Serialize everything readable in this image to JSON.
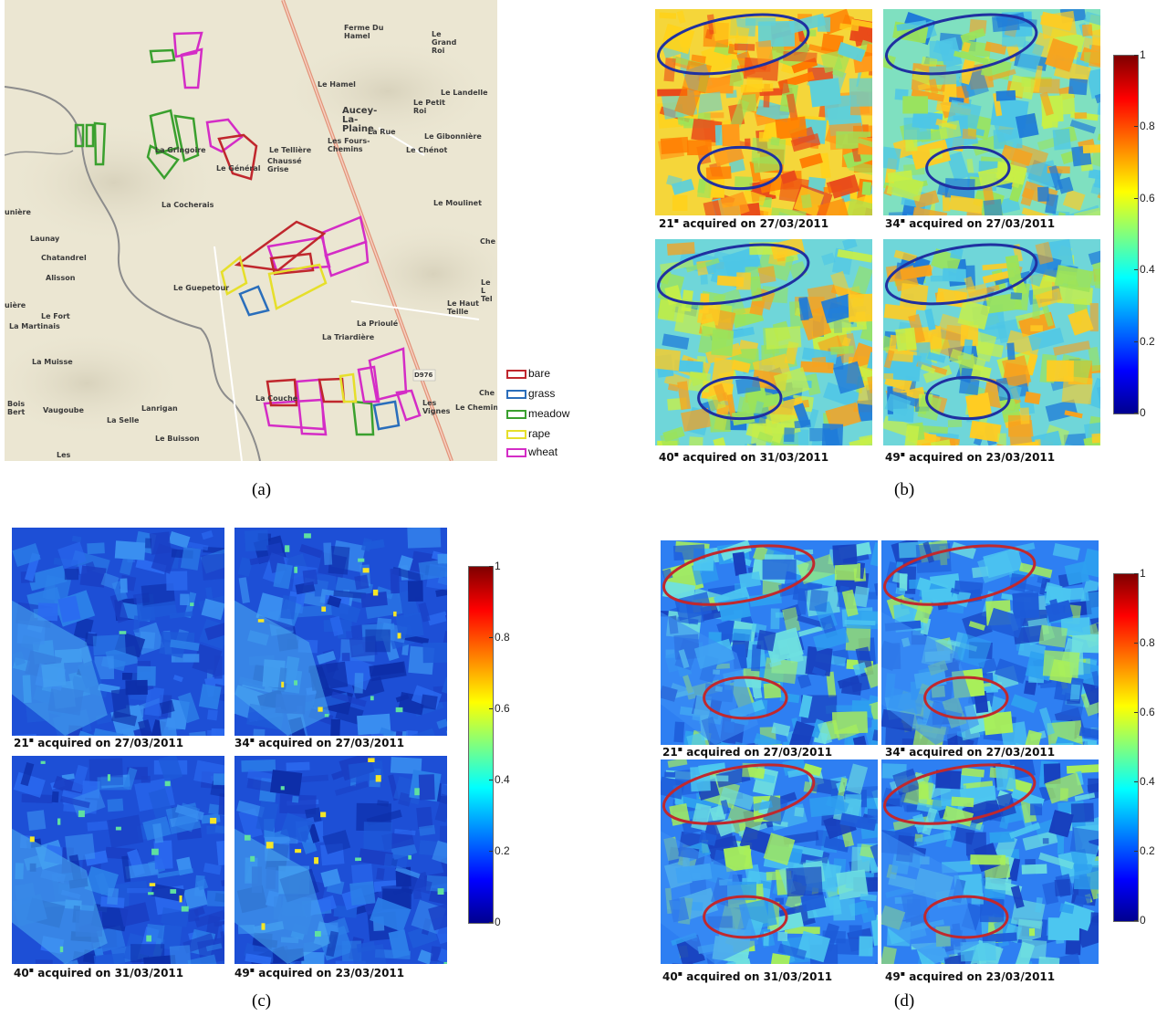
{
  "panels": {
    "a": "(a)",
    "b": "(b)",
    "c": "(c)",
    "d": "(d)"
  },
  "map": {
    "places": [
      "Ferme Du Hamel",
      "Le Grand Roi",
      "Le Hamel",
      "Le Landelle",
      "Aucey-La-Plaine",
      "Le Petit Roi",
      "La Rue",
      "Le Gibonnière",
      "Les Fours-Chemins",
      "Le Chénot",
      "Le Tellière",
      "Chaussé Grise",
      "La Gringoire",
      "Le Général",
      "La Cocherais",
      "Le Moulinet",
      "Launay",
      "Chatandrel",
      "Alisson",
      "Le Guepetour",
      "Le Fort",
      "La Martinais",
      "Le Haut Teille",
      "La Prioulé",
      "La Triardière",
      "La Muisse",
      "Bois Bert",
      "Vaugoube",
      "Lanrigan",
      "La Selle",
      "Le Buisson",
      "La Couche",
      "Les Vignes",
      "Le Chemin",
      "Les",
      "unière",
      "uière",
      "Che",
      "Le L Tel",
      "Che"
    ],
    "road_label": "D976",
    "legend": [
      {
        "label": "bare",
        "color": "#c0272d"
      },
      {
        "label": "grass",
        "color": "#2a6ebb"
      },
      {
        "label": "meadow",
        "color": "#3aa02e"
      },
      {
        "label": "rape",
        "color": "#e6df2a"
      },
      {
        "label": "wheat",
        "color": "#d42cc6"
      }
    ]
  },
  "image_sets": {
    "b": {
      "captions": [
        {
          "angle": "21",
          "text": "acquired on",
          "date": "27/03/2011"
        },
        {
          "angle": "34",
          "text": "acquired on",
          "date": "27/03/2011"
        },
        {
          "angle": "40",
          "text": "acquired on",
          "date": "31/03/2011"
        },
        {
          "angle": "49",
          "text": "acquired on",
          "date": "23/03/2011"
        }
      ],
      "ellipse_color": "#2030a0"
    },
    "c": {
      "captions": [
        {
          "angle": "21",
          "text": "acquired on",
          "date": "27/03/2011"
        },
        {
          "angle": "34",
          "text": "acquired on",
          "date": "27/03/2011"
        },
        {
          "angle": "40",
          "text": "acquired on",
          "date": "31/03/2011"
        },
        {
          "angle": "49",
          "text": "acquired on",
          "date": "23/03/2011"
        }
      ]
    },
    "d": {
      "captions": [
        {
          "angle": "21",
          "text": "acquired on",
          "date": "27/03/2011"
        },
        {
          "angle": "34",
          "text": "acquired on",
          "date": "27/03/2011"
        },
        {
          "angle": "40",
          "text": "acquired on",
          "date": "31/03/2011"
        },
        {
          "angle": "49",
          "text": "acquired on",
          "date": "23/03/2011"
        }
      ],
      "ellipse_color": "#c0282d"
    }
  },
  "colorbar": {
    "ticks": [
      "1",
      "0.8",
      "0.6",
      "0.4",
      "0.2",
      "0"
    ],
    "range": [
      0,
      1
    ]
  }
}
